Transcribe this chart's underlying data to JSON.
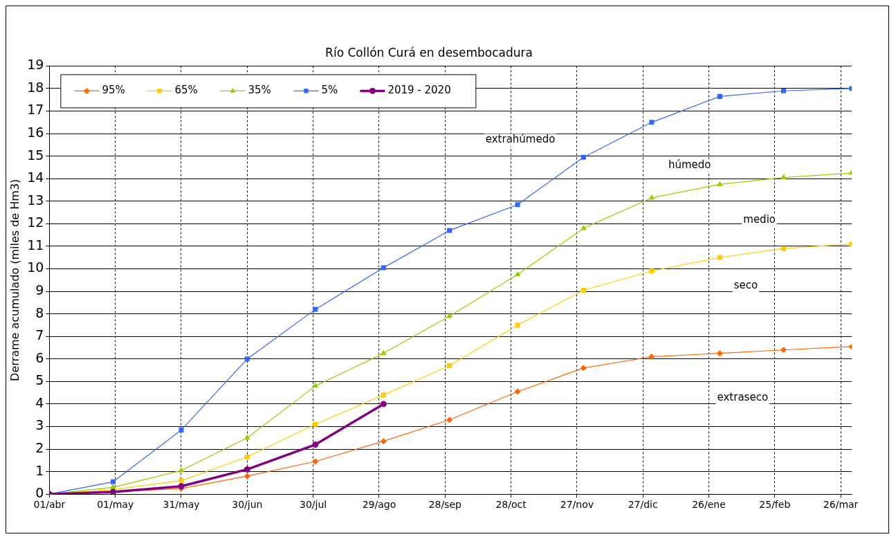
{
  "chart_data": {
    "type": "line",
    "title": "Río Collón Curá en desembocadura",
    "ylabel": "Derrame acumulado (miles de Hm3)",
    "x": [
      "2019-04-01",
      "2019-04-30",
      "2019-05-31",
      "2019-06-30",
      "2019-07-31",
      "2019-08-31",
      "2019-09-30",
      "2019-10-31",
      "2019-11-30",
      "2019-12-31",
      "2020-01-31",
      "2020-02-29",
      "2020-03-31"
    ],
    "series": [
      {
        "name": "95%",
        "color": "#ff6600",
        "marker": "diamond",
        "values": [
          0,
          0.1,
          0.25,
          0.8,
          1.45,
          2.35,
          3.3,
          4.55,
          5.6,
          6.1,
          6.25,
          6.4,
          6.55
        ]
      },
      {
        "name": "65%",
        "color": "#ffcc00",
        "marker": "square",
        "values": [
          0,
          0.2,
          0.6,
          1.65,
          3.1,
          4.4,
          5.7,
          7.5,
          9.05,
          9.9,
          10.5,
          10.9,
          11.1
        ]
      },
      {
        "name": "35%",
        "color": "#99cc00",
        "marker": "triangle",
        "values": [
          0,
          0.3,
          1.05,
          2.5,
          4.8,
          6.25,
          7.9,
          9.75,
          11.8,
          13.15,
          13.75,
          14.05,
          14.25
        ]
      },
      {
        "name": "5%",
        "color": "#3366ff",
        "marker": "square",
        "values": [
          0,
          0.55,
          2.85,
          6.0,
          8.2,
          10.05,
          11.7,
          12.85,
          14.95,
          16.5,
          17.65,
          17.9,
          18.0
        ]
      },
      {
        "name": "2019 - 2020",
        "color": "#800080",
        "marker": "circle",
        "values": [
          0,
          0.1,
          0.35,
          1.1,
          2.2,
          4.0,
          null,
          null,
          null,
          null,
          null,
          null,
          null
        ]
      }
    ],
    "xlim": [
      "2019-04-01",
      "2020-03-31"
    ],
    "xticks": [
      {
        "value": "2019-04-01",
        "label": "01/abr"
      },
      {
        "value": "2019-05-01",
        "label": "01/may"
      },
      {
        "value": "2019-05-31",
        "label": "31/may"
      },
      {
        "value": "2019-06-30",
        "label": "30/jun"
      },
      {
        "value": "2019-07-30",
        "label": "30/jul"
      },
      {
        "value": "2019-08-29",
        "label": "29/ago"
      },
      {
        "value": "2019-09-28",
        "label": "28/sep"
      },
      {
        "value": "2019-10-28",
        "label": "28/oct"
      },
      {
        "value": "2019-11-27",
        "label": "27/nov"
      },
      {
        "value": "2019-12-27",
        "label": "27/dic"
      },
      {
        "value": "2020-01-26",
        "label": "26/ene"
      },
      {
        "value": "2020-02-25",
        "label": "25/feb"
      },
      {
        "value": "2020-03-26",
        "label": "26/mar"
      }
    ],
    "ylim": [
      0,
      19
    ],
    "yticks": [
      0,
      1,
      2,
      3,
      4,
      5,
      6,
      7,
      8,
      9,
      10,
      11,
      12,
      13,
      14,
      15,
      16,
      17,
      18,
      19
    ],
    "annotations": [
      "extrahúmedo",
      "húmedo",
      "medio",
      "seco",
      "extraseco"
    ],
    "grid": true,
    "legend": "top left",
    "line_style": "solid"
  }
}
